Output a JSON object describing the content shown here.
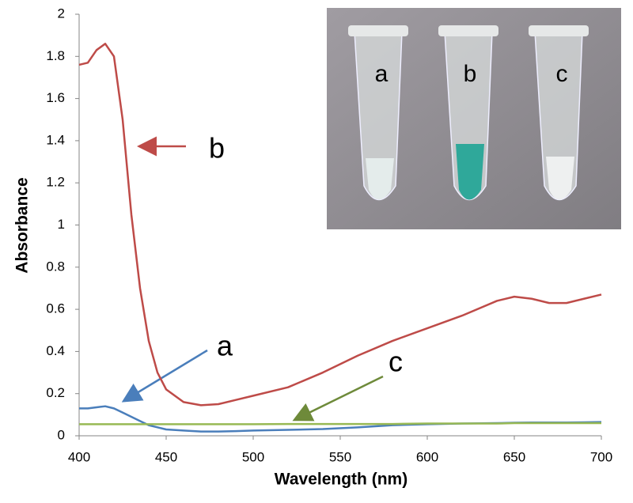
{
  "chart_data": {
    "type": "line",
    "x_label": "Wavelength (nm)",
    "y_label": "Absorbance",
    "x": [
      400,
      405,
      410,
      415,
      420,
      425,
      430,
      435,
      440,
      445,
      450,
      460,
      470,
      480,
      490,
      500,
      520,
      540,
      560,
      580,
      600,
      620,
      640,
      650,
      660,
      670,
      680,
      690,
      700
    ],
    "series": [
      {
        "name": "a",
        "color": "#4a7ebb",
        "values": [
          0.13,
          0.13,
          0.135,
          0.14,
          0.13,
          0.11,
          0.09,
          0.07,
          0.05,
          0.04,
          0.03,
          0.025,
          0.02,
          0.02,
          0.022,
          0.025,
          0.028,
          0.032,
          0.04,
          0.05,
          0.055,
          0.058,
          0.06,
          0.062,
          0.063,
          0.063,
          0.063,
          0.064,
          0.065
        ]
      },
      {
        "name": "b",
        "color": "#be4b48",
        "values": [
          1.76,
          1.77,
          1.83,
          1.86,
          1.8,
          1.5,
          1.05,
          0.7,
          0.45,
          0.3,
          0.22,
          0.16,
          0.145,
          0.15,
          0.17,
          0.19,
          0.23,
          0.3,
          0.38,
          0.45,
          0.51,
          0.57,
          0.64,
          0.66,
          0.65,
          0.63,
          0.63,
          0.65,
          0.67
        ]
      },
      {
        "name": "c",
        "color": "#98b954",
        "values": [
          0.055,
          0.055,
          0.055,
          0.055,
          0.055,
          0.055,
          0.055,
          0.055,
          0.055,
          0.055,
          0.055,
          0.055,
          0.055,
          0.055,
          0.055,
          0.055,
          0.056,
          0.056,
          0.056,
          0.056,
          0.058,
          0.058,
          0.058,
          0.06,
          0.06,
          0.06,
          0.06,
          0.06,
          0.06
        ]
      }
    ],
    "xlim": [
      400,
      700
    ],
    "xticks": [
      400,
      450,
      500,
      550,
      600,
      650,
      700
    ],
    "ylim": [
      0,
      2
    ],
    "yticks": [
      0,
      0.2,
      0.4,
      0.6,
      0.8,
      1,
      1.2,
      1.4,
      1.6,
      1.8,
      2
    ],
    "photo_labels": [
      "a",
      "b",
      "c"
    ]
  }
}
